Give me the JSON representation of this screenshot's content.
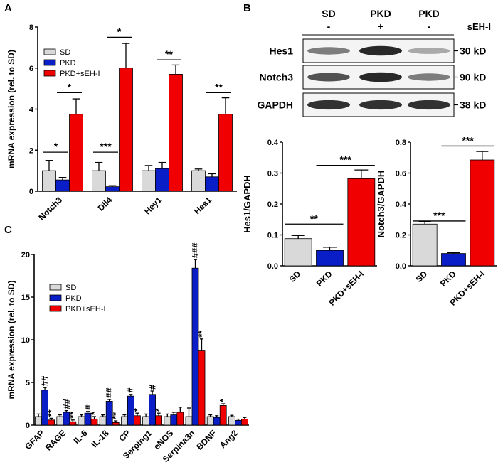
{
  "panel_labels": {
    "a": "A",
    "b": "B",
    "c": "C"
  },
  "colors": {
    "SD": "#d9d9d9",
    "PKD": "#0a1ec8",
    "PKD+sEH-I": "#f00000",
    "blot_band": "#1c1c1c"
  },
  "western_blot": {
    "groups": [
      "SD",
      "PKD",
      "PKD"
    ],
    "treatment_label": "sEH-I",
    "treatments": [
      "-",
      "+",
      "-"
    ],
    "rows": [
      {
        "protein": "Hes1",
        "size": "30 kD",
        "intensities": [
          0.55,
          0.95,
          0.35
        ]
      },
      {
        "protein": "Notch3",
        "size": "90 kD",
        "intensities": [
          0.75,
          0.95,
          0.55
        ]
      },
      {
        "protein": "GAPDH",
        "size": "38 kD",
        "intensities": [
          0.9,
          0.9,
          0.9
        ]
      }
    ]
  },
  "chart_data": [
    {
      "id": "A",
      "type": "bar",
      "title": "",
      "xlabel": "",
      "ylabel": "mRNA expression (rel. to SD)",
      "ylim": [
        0,
        8
      ],
      "yticks": [
        "0",
        "2",
        "4",
        "6",
        "8"
      ],
      "categories": [
        "Notch3",
        "Dll4",
        "Hey1",
        "Hes1"
      ],
      "legend": "top-left",
      "series": [
        {
          "name": "SD",
          "values": [
            1.0,
            1.0,
            1.0,
            1.0
          ],
          "errors": [
            0.5,
            0.4,
            0.25,
            0.08
          ]
        },
        {
          "name": "PKD",
          "values": [
            0.55,
            0.22,
            1.1,
            0.7
          ],
          "errors": [
            0.12,
            0.05,
            0.3,
            0.15
          ]
        },
        {
          "name": "PKD+sEH-I",
          "values": [
            3.75,
            6.0,
            5.7,
            3.75
          ],
          "errors": [
            0.75,
            1.2,
            0.45,
            0.8
          ]
        }
      ],
      "significance": [
        {
          "from": [
            0,
            0
          ],
          "to": [
            0,
            1
          ],
          "y": 1.9,
          "label": "*"
        },
        {
          "from": [
            0,
            1
          ],
          "to": [
            0,
            2
          ],
          "y": 4.8,
          "label": "*"
        },
        {
          "from": [
            1,
            0
          ],
          "to": [
            1,
            1
          ],
          "y": 1.9,
          "label": "***"
        },
        {
          "from": [
            1,
            1
          ],
          "to": [
            1,
            2
          ],
          "y": 7.5,
          "label": "*"
        },
        {
          "from": [
            2,
            1
          ],
          "to": [
            2,
            2
          ],
          "y": 6.4,
          "label": "**"
        },
        {
          "from": [
            3,
            1
          ],
          "to": [
            3,
            2
          ],
          "y": 4.8,
          "label": "**"
        }
      ]
    },
    {
      "id": "B-Hes1",
      "type": "bar",
      "title": "",
      "xlabel": "",
      "ylabel": "Hes1/GAPDH",
      "ylim": [
        0,
        0.4
      ],
      "yticks": [
        "0.0",
        "0.1",
        "0.2",
        "0.3",
        "0.4"
      ],
      "categories": [
        "SD",
        "PKD",
        "PKD+sEH-I"
      ],
      "values": [
        0.088,
        0.05,
        0.282
      ],
      "errors": [
        0.01,
        0.01,
        0.028
      ],
      "significance": [
        {
          "from": 0,
          "to": 1,
          "y": 0.135,
          "label": "**"
        },
        {
          "from": 1,
          "to": 2,
          "y": 0.325,
          "label": "***"
        }
      ]
    },
    {
      "id": "B-Notch3",
      "type": "bar",
      "title": "",
      "xlabel": "",
      "ylabel": "Notch3/GAPDH",
      "ylim": [
        0,
        0.8
      ],
      "yticks": [
        "0.0",
        "0.2",
        "0.4",
        "0.6",
        "0.8"
      ],
      "categories": [
        "SD",
        "PKD",
        "PKD+sEH-I"
      ],
      "values": [
        0.27,
        0.08,
        0.685
      ],
      "errors": [
        0.015,
        0.005,
        0.055
      ],
      "significance": [
        {
          "from": 0,
          "to": 1,
          "y": 0.29,
          "label": "***"
        },
        {
          "from": 1,
          "to": 2,
          "y": 0.775,
          "label": "***"
        }
      ]
    },
    {
      "id": "C",
      "type": "bar",
      "title": "",
      "xlabel": "",
      "ylabel": "mRNA expression (rel. to SD)",
      "ylim": [
        0,
        20
      ],
      "yticks": [
        "0",
        "5",
        "10",
        "15",
        "20"
      ],
      "categories": [
        "GFAP",
        "RAGE",
        "IL-6",
        "IL-1ß",
        "CP",
        "Serping1",
        "eNOS",
        "Serpina3n",
        "BDNF",
        "Ang2"
      ],
      "legend": "top-left",
      "series": [
        {
          "name": "SD",
          "values": [
            1.0,
            1.0,
            1.0,
            1.0,
            1.0,
            1.0,
            1.0,
            1.0,
            1.0,
            1.0
          ],
          "errors": [
            0.3,
            0.2,
            0.2,
            0.2,
            0.2,
            0.3,
            0.3,
            1.0,
            0.2,
            0.15
          ]
        },
        {
          "name": "PKD",
          "values": [
            4.1,
            1.5,
            1.4,
            2.8,
            3.4,
            3.6,
            1.2,
            18.4,
            0.9,
            0.55
          ],
          "errors": [
            0.3,
            0.2,
            0.2,
            0.2,
            0.2,
            0.4,
            0.3,
            1.0,
            0.2,
            0.15
          ]
        },
        {
          "name": "PKD+sEH-I",
          "values": [
            0.6,
            0.4,
            0.7,
            0.3,
            1.1,
            1.1,
            1.5,
            8.7,
            2.3,
            0.7
          ],
          "errors": [
            0.2,
            0.2,
            0.3,
            0.2,
            0.3,
            0.3,
            0.6,
            1.4,
            0.2,
            0.2
          ]
        }
      ],
      "annotations": [
        {
          "category": 0,
          "series": 1,
          "label": "##"
        },
        {
          "category": 0,
          "series": 2,
          "label": "**"
        },
        {
          "category": 1,
          "series": 1,
          "label": "##"
        },
        {
          "category": 1,
          "series": 2,
          "label": "**"
        },
        {
          "category": 2,
          "series": 1,
          "label": "#"
        },
        {
          "category": 2,
          "series": 2,
          "label": "*"
        },
        {
          "category": 3,
          "series": 1,
          "label": "##"
        },
        {
          "category": 3,
          "series": 2,
          "label": "**"
        },
        {
          "category": 4,
          "series": 1,
          "label": "#"
        },
        {
          "category": 4,
          "series": 2,
          "label": "*"
        },
        {
          "category": 5,
          "series": 1,
          "label": "#"
        },
        {
          "category": 5,
          "series": 2,
          "label": "*"
        },
        {
          "category": 7,
          "series": 1,
          "label": "###"
        },
        {
          "category": 7,
          "series": 2,
          "label": "**"
        },
        {
          "category": 8,
          "series": 2,
          "label": "*"
        }
      ]
    }
  ]
}
